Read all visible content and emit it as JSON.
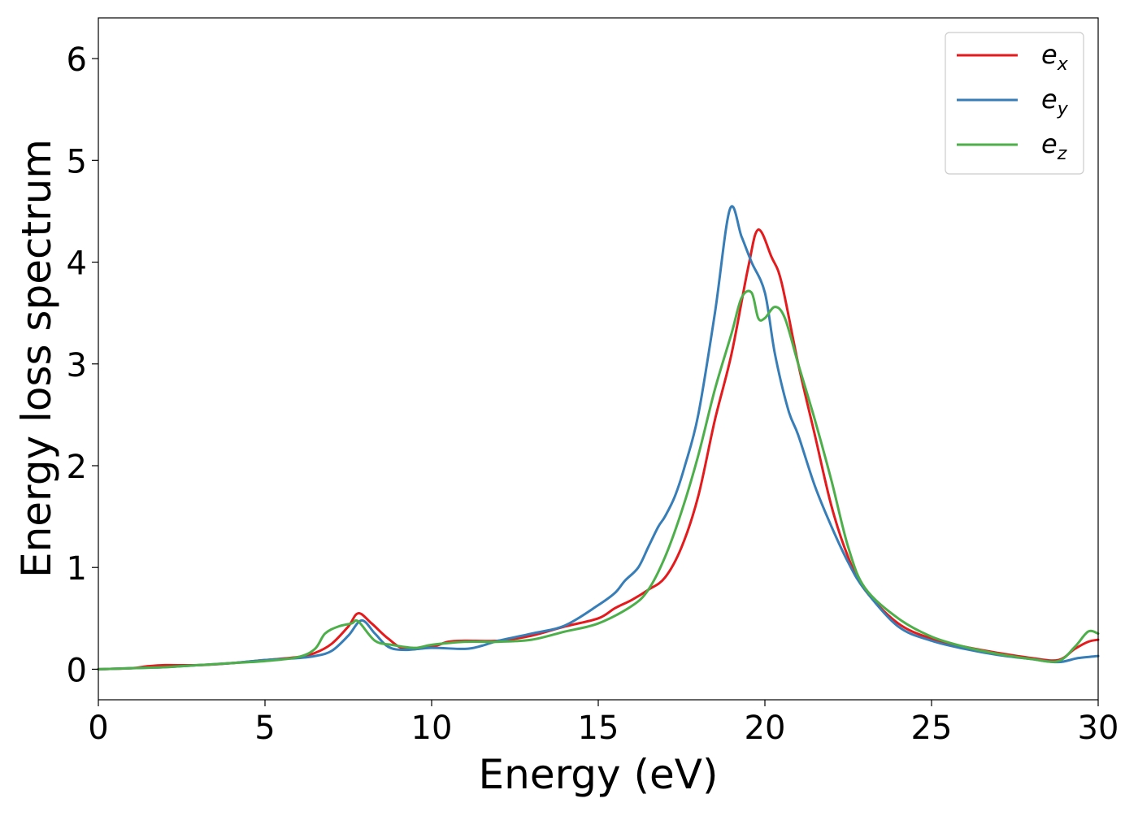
{
  "chart_data": {
    "type": "line",
    "title": "",
    "xlabel": "Energy (eV)",
    "ylabel": "Energy loss spectrum",
    "xlim": [
      0,
      30
    ],
    "ylim": [
      -0.3,
      6.4
    ],
    "xticks": [
      0,
      5,
      10,
      15,
      20,
      25,
      30
    ],
    "yticks": [
      0,
      1,
      2,
      3,
      4,
      5,
      6
    ],
    "grid": false,
    "legend_position": "top-right",
    "series": [
      {
        "name": "e_x",
        "label_base": "e",
        "label_sub": "x",
        "color": "#e41a1c",
        "x": [
          0,
          1,
          1.5,
          2,
          3,
          4,
          5,
          6,
          6.5,
          7,
          7.5,
          7.8,
          8.2,
          8.7,
          9.2,
          10,
          10.5,
          11,
          12,
          13,
          14,
          15,
          15.5,
          16,
          16.5,
          17,
          17.5,
          18,
          18.5,
          19,
          19.5,
          19.8,
          20.2,
          20.5,
          21,
          21.5,
          22,
          22.5,
          23,
          24,
          25,
          26,
          27,
          28,
          28.8,
          29.3,
          29.7,
          30
        ],
        "y": [
          0,
          0.01,
          0.03,
          0.04,
          0.04,
          0.06,
          0.09,
          0.12,
          0.16,
          0.25,
          0.42,
          0.55,
          0.45,
          0.3,
          0.2,
          0.22,
          0.27,
          0.28,
          0.28,
          0.33,
          0.42,
          0.5,
          0.6,
          0.68,
          0.78,
          0.9,
          1.2,
          1.7,
          2.45,
          3.1,
          3.95,
          4.32,
          4.05,
          3.8,
          3.0,
          2.3,
          1.6,
          1.1,
          0.78,
          0.45,
          0.3,
          0.22,
          0.16,
          0.11,
          0.09,
          0.2,
          0.27,
          0.29
        ]
      },
      {
        "name": "e_y",
        "label_base": "e",
        "label_sub": "y",
        "color": "#377eb8",
        "x": [
          0,
          1,
          2,
          3,
          4,
          5,
          6,
          6.5,
          7,
          7.5,
          7.9,
          8.3,
          8.7,
          9.2,
          10,
          11,
          11.5,
          12,
          13,
          14,
          15,
          15.5,
          15.8,
          16.2,
          16.5,
          16.8,
          17,
          17.3,
          17.6,
          18,
          18.5,
          18.95,
          19.3,
          19.6,
          20,
          20.3,
          20.7,
          21,
          21.5,
          22,
          22.5,
          23,
          24,
          25,
          26,
          27,
          28,
          28.8,
          29.4,
          30
        ],
        "y": [
          0,
          0.01,
          0.02,
          0.04,
          0.06,
          0.09,
          0.11,
          0.13,
          0.18,
          0.33,
          0.48,
          0.35,
          0.22,
          0.19,
          0.21,
          0.2,
          0.23,
          0.28,
          0.35,
          0.43,
          0.63,
          0.75,
          0.87,
          1.0,
          1.2,
          1.4,
          1.5,
          1.7,
          2.0,
          2.5,
          3.5,
          4.52,
          4.25,
          4.0,
          3.7,
          3.1,
          2.55,
          2.3,
          1.8,
          1.4,
          1.05,
          0.78,
          0.42,
          0.28,
          0.2,
          0.14,
          0.1,
          0.07,
          0.11,
          0.13
        ]
      },
      {
        "name": "e_z",
        "label_base": "e",
        "label_sub": "z",
        "color": "#4daf4a",
        "x": [
          0,
          1,
          2,
          3,
          4,
          5,
          6,
          6.5,
          6.8,
          7.2,
          7.6,
          7.8,
          8.3,
          8.8,
          9.5,
          10,
          11,
          12,
          13,
          14,
          15,
          16,
          16.5,
          17,
          17.5,
          18,
          18.5,
          19,
          19.3,
          19.6,
          19.8,
          20,
          20.3,
          20.6,
          21,
          21.5,
          22,
          22.5,
          23,
          24,
          25,
          26,
          27,
          28,
          28.8,
          29.3,
          29.7,
          30
        ],
        "y": [
          0,
          0.01,
          0.02,
          0.04,
          0.06,
          0.08,
          0.12,
          0.2,
          0.35,
          0.42,
          0.45,
          0.47,
          0.28,
          0.24,
          0.21,
          0.24,
          0.27,
          0.27,
          0.29,
          0.37,
          0.45,
          0.62,
          0.78,
          1.1,
          1.55,
          2.1,
          2.75,
          3.3,
          3.65,
          3.7,
          3.45,
          3.45,
          3.56,
          3.45,
          3.0,
          2.45,
          1.85,
          1.2,
          0.8,
          0.5,
          0.32,
          0.22,
          0.15,
          0.1,
          0.08,
          0.22,
          0.37,
          0.35
        ]
      }
    ]
  }
}
